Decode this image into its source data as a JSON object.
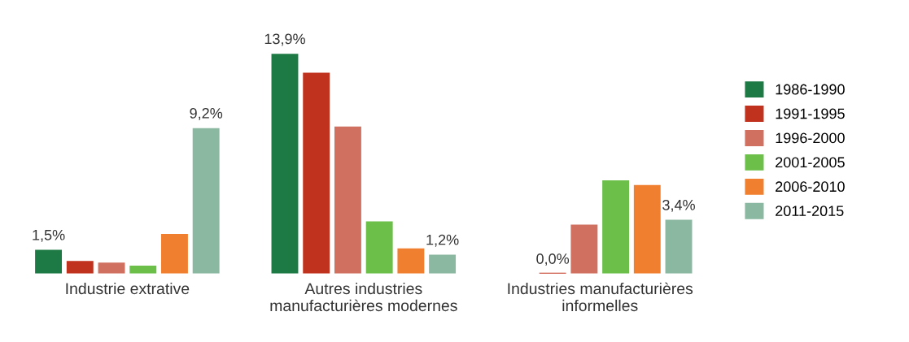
{
  "chart_data": {
    "type": "bar",
    "categories": [
      "Industrie extrative",
      "Autres industries\nmanufacturières modernes",
      "Industries manufacturières\ninformelles"
    ],
    "series": [
      {
        "name": "1986-1990",
        "color": "#1e7a45",
        "values": [
          1.5,
          13.9,
          null
        ],
        "value_labels": [
          "1,5%",
          "13,9%",
          null
        ]
      },
      {
        "name": "1991-1995",
        "color": "#c0321e",
        "values": [
          0.8,
          12.7,
          0.0
        ],
        "value_labels": [
          null,
          null,
          "0,0%"
        ]
      },
      {
        "name": "1996-2000",
        "color": "#d07060",
        "values": [
          0.7,
          9.3,
          3.1
        ],
        "value_labels": [
          null,
          null,
          null
        ]
      },
      {
        "name": "2001-2005",
        "color": "#6cc04a",
        "values": [
          0.5,
          3.3,
          5.9
        ],
        "value_labels": [
          null,
          null,
          null
        ]
      },
      {
        "name": "2006-2010",
        "color": "#f08030",
        "values": [
          2.5,
          1.6,
          5.6
        ],
        "value_labels": [
          null,
          null,
          null
        ]
      },
      {
        "name": "2011-2015",
        "color": "#8ab8a0",
        "values": [
          9.2,
          1.2,
          3.4
        ],
        "value_labels": [
          "9,2%",
          "1,2%",
          "3,4%"
        ]
      }
    ],
    "legend": "right",
    "grid": false
  }
}
